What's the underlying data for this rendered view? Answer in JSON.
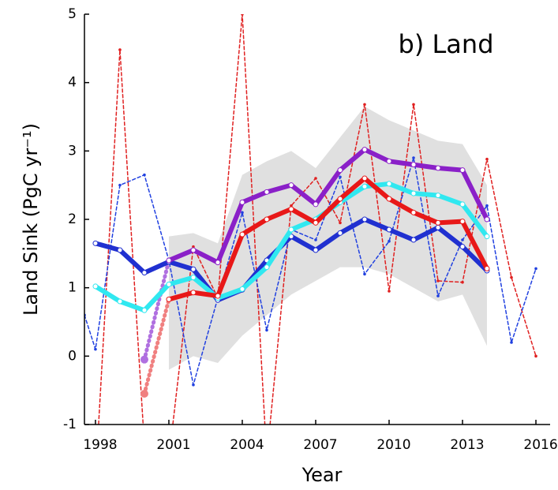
{
  "chart_data": {
    "type": "line",
    "annotation": "b) Land",
    "xlabel": "Year",
    "ylabel": "Land Sink (PgC yr⁻¹)",
    "xlim": [
      1997.55,
      2016.58
    ],
    "xticks": [
      1998,
      2001,
      2004,
      2007,
      2010,
      2013,
      2016
    ],
    "ylim": [
      -1,
      5
    ],
    "yticks": [
      -1,
      0,
      1,
      2,
      3,
      4,
      5
    ],
    "band": {
      "color": "#e0e0e0",
      "x": [
        2001,
        2002,
        2003,
        2004,
        2005,
        2006,
        2007,
        2008,
        2009,
        2010,
        2011,
        2012,
        2013,
        2014
      ],
      "lower": [
        -0.2,
        0.0,
        -0.1,
        0.3,
        0.6,
        0.9,
        1.1,
        1.3,
        1.3,
        1.2,
        1.0,
        0.8,
        0.9,
        0.15
      ],
      "upper": [
        1.75,
        1.8,
        1.65,
        2.65,
        2.85,
        3.0,
        2.75,
        3.2,
        3.65,
        3.45,
        3.3,
        3.15,
        3.1,
        2.5
      ]
    },
    "series": [
      {
        "color": "#e02020",
        "style": "dashed",
        "x": [
          1998,
          1999,
          2000,
          2001,
          2002,
          2003,
          2004,
          2005,
          2006,
          2007,
          2008,
          2009,
          2010,
          2011,
          2012,
          2013,
          2014,
          2015,
          2016
        ],
        "values": [
          -1.8,
          4.48,
          -1.3,
          -1.5,
          1.6,
          0.85,
          5.0,
          -1.5,
          2.2,
          2.6,
          1.95,
          3.68,
          0.95,
          3.68,
          1.1,
          1.08,
          2.88,
          1.15,
          0.0
        ]
      },
      {
        "color": "#2040e0",
        "style": "dashed",
        "x": [
          1997.55,
          1998,
          1999,
          2000,
          2001,
          2002,
          2003,
          2004,
          2005,
          2006,
          2007,
          2008,
          2009,
          2010,
          2011,
          2012,
          2013,
          2014,
          2015,
          2016
        ],
        "values": [
          0.6,
          0.1,
          2.5,
          2.65,
          1.4,
          -0.42,
          0.85,
          2.1,
          0.38,
          1.85,
          1.7,
          2.62,
          1.2,
          1.68,
          2.9,
          0.88,
          1.7,
          2.2,
          0.2,
          1.28
        ]
      },
      {
        "color": "#f08080",
        "style": "dotted",
        "x": [
          2000,
          2001
        ],
        "values": [
          -0.55,
          0.83
        ]
      },
      {
        "color": "#b070e0",
        "style": "dotted",
        "x": [
          2000,
          2001
        ],
        "values": [
          -0.05,
          1.4
        ]
      },
      {
        "color": "#2030d0",
        "style": "thick",
        "x": [
          1998,
          1999,
          2000,
          2001,
          2002,
          2003,
          2004,
          2005,
          2006,
          2007,
          2008,
          2009,
          2010,
          2011,
          2012,
          2013,
          2014
        ],
        "values": [
          1.65,
          1.55,
          1.22,
          1.38,
          1.27,
          0.82,
          0.97,
          1.4,
          1.75,
          1.55,
          1.8,
          2.0,
          1.85,
          1.7,
          1.88,
          1.6,
          1.25
        ]
      },
      {
        "color": "#30e8f0",
        "style": "thick",
        "x": [
          1998,
          1999,
          2000,
          2001,
          2002,
          2003,
          2004,
          2005,
          2006,
          2007,
          2008,
          2009,
          2010,
          2011,
          2012,
          2013,
          2014
        ],
        "values": [
          1.02,
          0.8,
          0.67,
          1.05,
          1.15,
          0.85,
          0.98,
          1.3,
          1.85,
          2.0,
          2.25,
          2.48,
          2.52,
          2.38,
          2.35,
          2.22,
          1.75
        ]
      },
      {
        "color": "#8a20c8",
        "style": "thick",
        "x": [
          2001,
          2002,
          2003,
          2004,
          2005,
          2006,
          2007,
          2008,
          2009,
          2010,
          2011,
          2012,
          2013,
          2014
        ],
        "values": [
          1.4,
          1.55,
          1.37,
          2.25,
          2.4,
          2.5,
          2.22,
          2.72,
          3.02,
          2.85,
          2.8,
          2.75,
          2.72,
          2.0
        ]
      },
      {
        "color": "#e81818",
        "style": "thick",
        "x": [
          2001,
          2002,
          2003,
          2004,
          2005,
          2006,
          2007,
          2008,
          2009,
          2010,
          2011,
          2012,
          2013,
          2014
        ],
        "values": [
          0.83,
          0.93,
          0.88,
          1.78,
          2.0,
          2.15,
          1.95,
          2.3,
          2.6,
          2.3,
          2.1,
          1.95,
          1.97,
          1.28
        ]
      }
    ]
  }
}
